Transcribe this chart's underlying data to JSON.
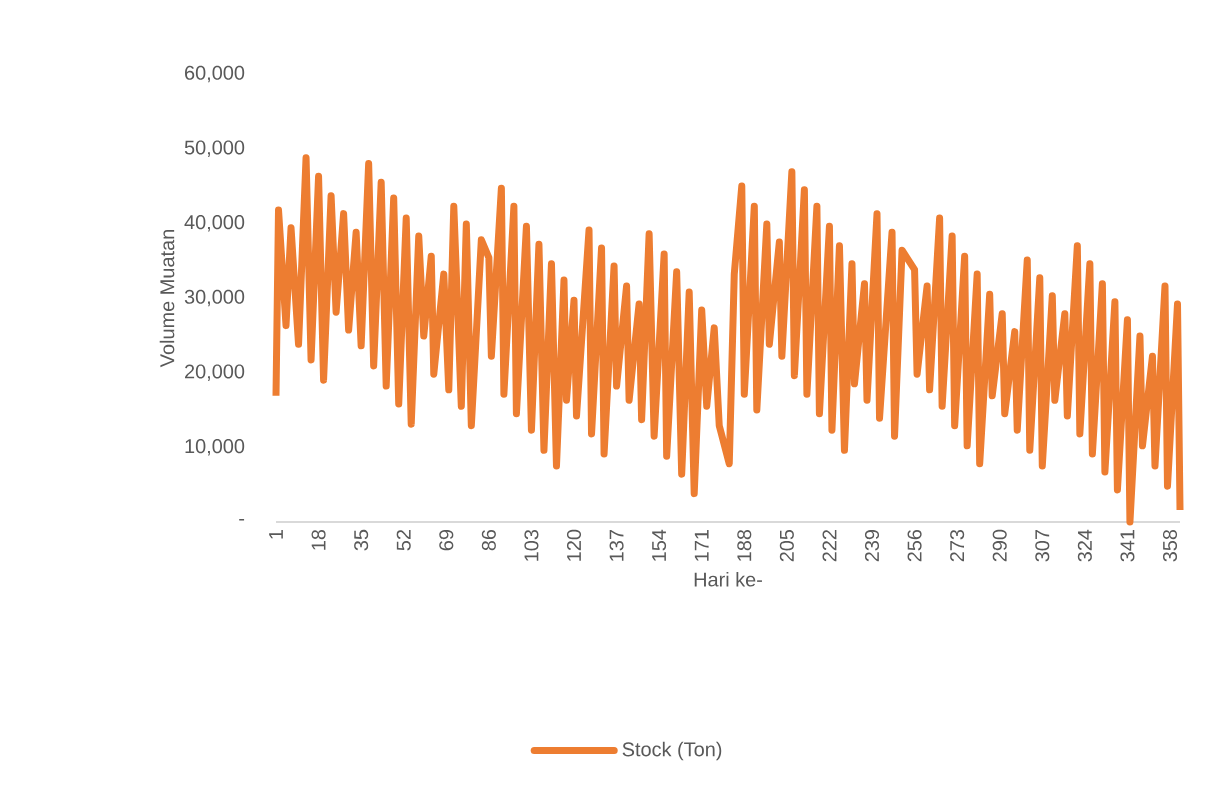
{
  "chart_data": {
    "type": "line",
    "xlabel": "Hari ke-",
    "ylabel": "Volume Muatan",
    "x": [
      1,
      2,
      5,
      7,
      10,
      13,
      15,
      18,
      20,
      23,
      25,
      28,
      30,
      33,
      35,
      38,
      40,
      43,
      45,
      48,
      50,
      53,
      55,
      58,
      60,
      63,
      64,
      68,
      70,
      72,
      75,
      77,
      79,
      83,
      86,
      87,
      91,
      92,
      96,
      97,
      101,
      103,
      106,
      108,
      111,
      113,
      116,
      117,
      120,
      121,
      126,
      127,
      131,
      132,
      136,
      137,
      141,
      142,
      146,
      147,
      150,
      152,
      156,
      157,
      161,
      163,
      166,
      168,
      171,
      173,
      176,
      178,
      182,
      184,
      187,
      188,
      192,
      193,
      197,
      198,
      202,
      203,
      207,
      208,
      212,
      213,
      217,
      218,
      222,
      223,
      226,
      228,
      231,
      232,
      236,
      237,
      241,
      242,
      247,
      248,
      251,
      256,
      257,
      261,
      262,
      266,
      267,
      271,
      272,
      276,
      277,
      281,
      282,
      286,
      287,
      291,
      292,
      296,
      297,
      301,
      302,
      306,
      307,
      311,
      312,
      316,
      317,
      321,
      322,
      326,
      327,
      331,
      332,
      336,
      337,
      341,
      342,
      346,
      347,
      351,
      352,
      356,
      357,
      361,
      362
    ],
    "series": [
      {
        "name": "Stock (Ton)",
        "color": "#ed7d31",
        "values": [
          16900,
          41800,
          26300,
          39400,
          23800,
          48800,
          21700,
          46300,
          19000,
          43700,
          28100,
          41300,
          25700,
          38800,
          23600,
          48000,
          20900,
          45500,
          18200,
          43400,
          15800,
          40700,
          13100,
          38300,
          24900,
          35600,
          19800,
          33200,
          17700,
          42300,
          15500,
          39900,
          12900,
          37800,
          35400,
          22200,
          44700,
          17100,
          42300,
          14500,
          39600,
          12300,
          37200,
          9600,
          34600,
          7500,
          32400,
          16300,
          29700,
          14200,
          39100,
          11800,
          36700,
          9100,
          34300,
          18200,
          31600,
          16300,
          29200,
          13700,
          38600,
          11500,
          35900,
          8800,
          33500,
          6400,
          30800,
          3800,
          28400,
          15500,
          26000,
          12900,
          7800,
          33200,
          45000,
          17100,
          42300,
          15000,
          39900,
          23800,
          37500,
          22200,
          46900,
          19600,
          44500,
          17100,
          42300,
          14500,
          39600,
          12300,
          37000,
          9600,
          34600,
          18500,
          31900,
          16300,
          41300,
          13900,
          38800,
          11500,
          36400,
          33800,
          19800,
          31600,
          17700,
          40700,
          15500,
          38300,
          12900,
          35600,
          10200,
          33200,
          7800,
          30500,
          16900,
          27900,
          14500,
          25500,
          12300,
          35100,
          9600,
          32700,
          7500,
          30300,
          16300,
          27900,
          14200,
          37000,
          11800,
          34600,
          9100,
          31900,
          6700,
          29500,
          4300,
          27100,
          0,
          24900,
          10200,
          22200,
          7500,
          31600,
          4800,
          29200,
          1600
        ]
      }
    ],
    "xlim": [
      1,
      362
    ],
    "xticks": [
      1,
      18,
      35,
      52,
      69,
      86,
      103,
      120,
      137,
      154,
      171,
      188,
      205,
      222,
      239,
      256,
      273,
      290,
      307,
      324,
      341,
      358
    ],
    "ylim": [
      0,
      60000
    ],
    "yticks": [
      {
        "value": 0,
        "label": "-"
      },
      {
        "value": 10000,
        "label": "10,000"
      },
      {
        "value": 20000,
        "label": "20,000"
      },
      {
        "value": 30000,
        "label": "30,000"
      },
      {
        "value": 40000,
        "label": "40,000"
      },
      {
        "value": 50000,
        "label": "50,000"
      },
      {
        "value": 60000,
        "label": "60,000"
      }
    ],
    "grid": false,
    "legend": "bottom",
    "marker": "none",
    "line_style": "solid"
  }
}
